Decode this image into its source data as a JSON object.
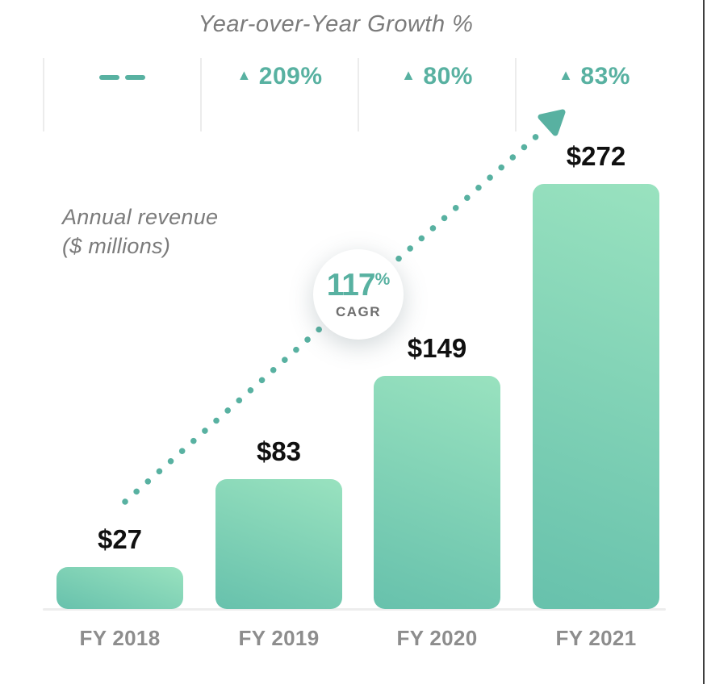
{
  "header": {
    "title": "Year-over-Year Growth %"
  },
  "annotation": {
    "line1": "Annual revenue",
    "line2": "($ millions)"
  },
  "cagr_badge": {
    "value": "117",
    "percent_sign": "%",
    "label": "CAGR"
  },
  "colors": {
    "teal": "#58b1a1",
    "bar_gradient_top": "#99e2bf",
    "bar_gradient_bottom": "#67c1ac",
    "value_label": "#101010",
    "category_label": "#8d8d8d",
    "divider": "#ececec",
    "title_gray": "#7b7b7b"
  },
  "chart_data": {
    "type": "bar",
    "title": "Year-over-Year Growth %",
    "ylabel": "Annual revenue ($ millions)",
    "categories": [
      "FY 2018",
      "FY 2019",
      "FY 2020",
      "FY 2021"
    ],
    "values": [
      27,
      83,
      149,
      272
    ],
    "value_labels": [
      "$27",
      "$83",
      "$149",
      "$272"
    ],
    "growth_row": [
      {
        "dashes": true,
        "text": ""
      },
      {
        "dashes": false,
        "text": "209%"
      },
      {
        "dashes": false,
        "text": "80%"
      },
      {
        "dashes": false,
        "text": "83%"
      }
    ],
    "cagr_annotation": "117% CAGR",
    "ylim": [
      0,
      280
    ],
    "grid": false,
    "legend": false,
    "annotations": [
      "dotted growth trend arrow from FY 2018 bar to top-right"
    ]
  }
}
